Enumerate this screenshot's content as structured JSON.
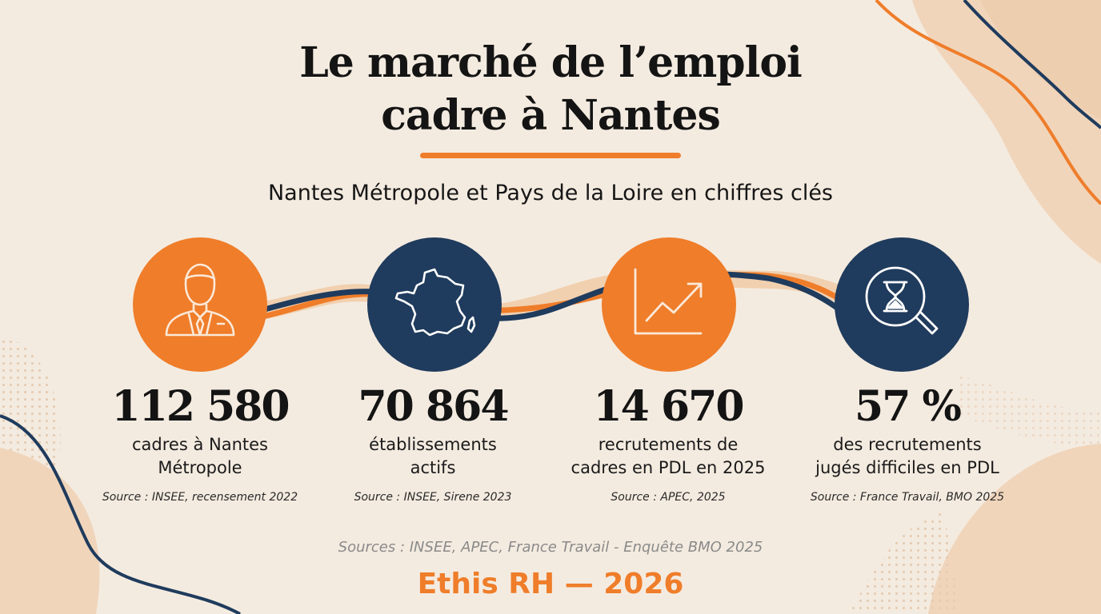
{
  "title": {
    "line1": "Le marché de l’emploi",
    "line2": "cadre à Nantes"
  },
  "subtitle": "Nantes Métropole et Pays de la Loire en chiffres clés",
  "colors": {
    "orange": "#ef7d2a",
    "navy": "#1f3b5d",
    "background": "#f4ebe0"
  },
  "stats": [
    {
      "icon": "businessman-icon",
      "value": "112 580",
      "desc_line1": "cadres à Nantes",
      "desc_line2": "Métropole",
      "source": "Source : INSEE, recensement 2022"
    },
    {
      "icon": "france-map-icon",
      "value": "70 864",
      "desc_line1": "établissements",
      "desc_line2": "actifs",
      "source": "Source : INSEE, Sirene 2023"
    },
    {
      "icon": "growth-chart-icon",
      "value": "14 670",
      "desc_line1": "recrutements de",
      "desc_line2": "cadres en PDL en 2025",
      "source": "Source : APEC, 2025"
    },
    {
      "icon": "hourglass-search-icon",
      "value": "57 %",
      "desc_line1": "des recrutements",
      "desc_line2": "jugés difficiles en PDL",
      "source": "Source : France Travail, BMO 2025"
    }
  ],
  "footer": {
    "sources": "Sources : INSEE, APEC, France Travail - Enquête BMO 2025",
    "brand": "Ethis RH — 2026"
  }
}
